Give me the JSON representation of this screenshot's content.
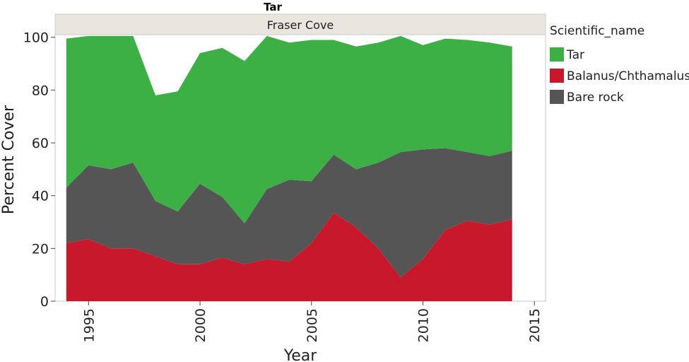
{
  "chart_data": {
    "type": "area",
    "stacked": true,
    "title": "Tar",
    "facet_label": "Fraser Cove",
    "xlabel": "Year",
    "ylabel": "Percent Cover",
    "xlim": [
      1993.5,
      2015.5
    ],
    "ylim": [
      0,
      101
    ],
    "x_ticks": [
      1995,
      2000,
      2005,
      2010,
      2015
    ],
    "y_ticks": [
      0,
      20,
      40,
      60,
      80,
      100
    ],
    "grid": false,
    "legend_title": "Scientific_name",
    "legend_position": "right",
    "x": [
      1994,
      1995,
      1996,
      1997,
      1998,
      1999,
      2000,
      2001,
      2002,
      2003,
      2004,
      2005,
      2006,
      2007,
      2008,
      2009,
      2010,
      2011,
      2012,
      2013,
      2014
    ],
    "series": [
      {
        "name": "Balanus/Chthamalus",
        "color": "#c8182b",
        "values": [
          22,
          23.5,
          20,
          20,
          17,
          14,
          14,
          16.5,
          14,
          16,
          15,
          22,
          33.5,
          28,
          20,
          9,
          16,
          27,
          30.5,
          29,
          31
        ]
      },
      {
        "name": "Bare rock",
        "color": "#555555",
        "values": [
          21,
          28,
          30,
          32.5,
          21,
          20,
          30.5,
          23,
          15.5,
          26.5,
          31,
          23.5,
          22,
          22,
          32.5,
          47.5,
          41.5,
          31,
          26,
          26,
          26
        ]
      },
      {
        "name": "Tar",
        "color": "#3cb044",
        "values": [
          56.5,
          49,
          50.5,
          48,
          40,
          45.5,
          49.5,
          56.5,
          61.5,
          58,
          52,
          53.5,
          43.5,
          46.5,
          45.5,
          44,
          39.5,
          41.5,
          42.5,
          43,
          39.5
        ]
      }
    ],
    "legend_order": [
      "Tar",
      "Balanus/Chthamalus",
      "Bare rock"
    ]
  }
}
